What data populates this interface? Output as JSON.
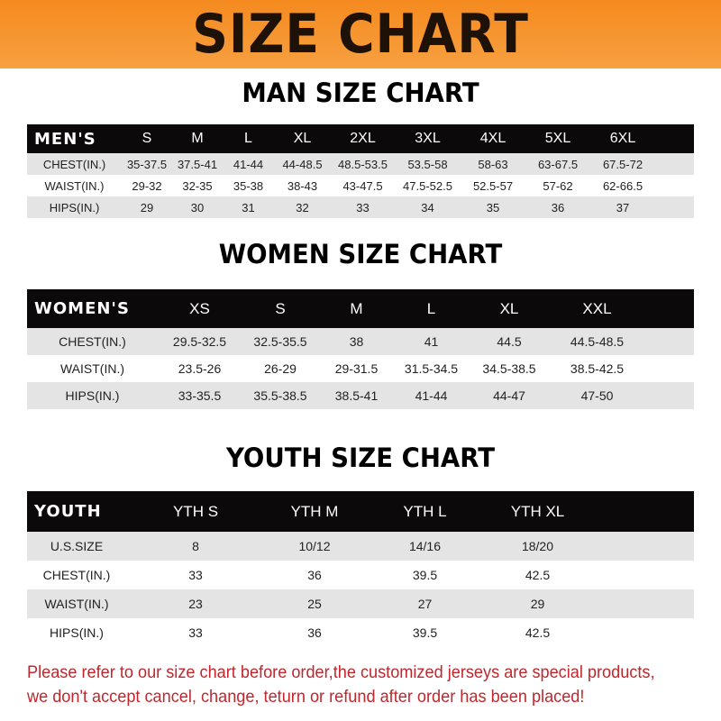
{
  "banner_title": "SIZE CHART",
  "men": {
    "title": "MAN SIZE CHART",
    "header": [
      "MEN'S",
      "S",
      "M",
      "L",
      "XL",
      "2XL",
      "3XL",
      "4XL",
      "5XL",
      "6XL"
    ],
    "rows": [
      [
        "CHEST(IN.)",
        "35-37.5",
        "37.5-41",
        "41-44",
        "44-48.5",
        "48.5-53.5",
        "53.5-58",
        "58-63",
        "63-67.5",
        "67.5-72"
      ],
      [
        "WAIST(IN.)",
        "29-32",
        "32-35",
        "35-38",
        "38-43",
        "43-47.5",
        "47.5-52.5",
        "52.5-57",
        "57-62",
        "62-66.5"
      ],
      [
        "HIPS(IN.)",
        "29",
        "30",
        "31",
        "32",
        "33",
        "34",
        "35",
        "36",
        "37"
      ]
    ]
  },
  "women": {
    "title": "WOMEN SIZE CHART",
    "header": [
      "WOMEN'S",
      "XS",
      "S",
      "M",
      "L",
      "XL",
      "XXL"
    ],
    "rows": [
      [
        "CHEST(IN.)",
        "29.5-32.5",
        "32.5-35.5",
        "38",
        "41",
        "44.5",
        "44.5-48.5"
      ],
      [
        "WAIST(IN.)",
        "23.5-26",
        "26-29",
        "29-31.5",
        "31.5-34.5",
        "34.5-38.5",
        "38.5-42.5"
      ],
      [
        "HIPS(IN.)",
        "33-35.5",
        "35.5-38.5",
        "38.5-41",
        "41-44",
        "44-47",
        "47-50"
      ]
    ]
  },
  "youth": {
    "title": "YOUTH SIZE CHART",
    "header": [
      "YOUTH",
      "YTH S",
      "YTH M",
      "YTH L",
      "YTH XL"
    ],
    "rows": [
      [
        "U.S.SIZE",
        "8",
        "10/12",
        "14/16",
        "18/20"
      ],
      [
        "CHEST(IN.)",
        "33",
        "36",
        "39.5",
        "42.5"
      ],
      [
        "WAIST(IN.)",
        "23",
        "25",
        "27",
        "29"
      ],
      [
        "HIPS(IN.)",
        "33",
        "36",
        "39.5",
        "42.5"
      ]
    ]
  },
  "note": {
    "line1": "Please refer to our size chart before order,the customized jerseys are special products,",
    "line2": "we don't accept cancel, change, teturn or refund after order has been placed!"
  },
  "colors": {
    "banner": "#f58a1f",
    "header_row": "#0b0909",
    "note": "#c0272d",
    "shaded_row": "#e4e4e4"
  }
}
